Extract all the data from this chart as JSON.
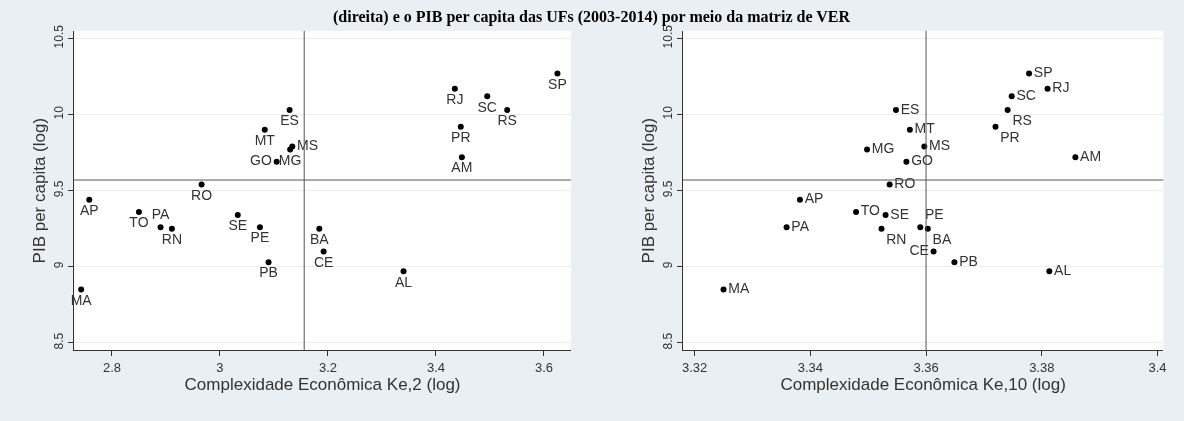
{
  "chart_data": [
    {
      "type": "scatter",
      "title": "(direita) e o PIB per capita das UFs (2003-2014) por meio da matriz de VER",
      "xlabel": "Complexidade Econômica Ke,2 (log)",
      "ylabel": "PIB per capita (log)",
      "color": "#000000",
      "marker": "circle",
      "grid": "y",
      "x": [
        3.625,
        3.435,
        3.495,
        3.532,
        3.446,
        3.448,
        3.129,
        3.083,
        3.134,
        3.13,
        3.105,
        2.966,
        2.758,
        2.85,
        3.033,
        2.89,
        2.911,
        3.074,
        3.184,
        3.192,
        3.09,
        3.34,
        2.743
      ],
      "values": [
        10.27,
        10.17,
        10.12,
        10.03,
        9.92,
        9.72,
        10.03,
        9.9,
        9.79,
        9.77,
        9.69,
        9.54,
        9.44,
        9.36,
        9.34,
        9.26,
        9.25,
        9.26,
        9.25,
        9.1,
        9.03,
        8.97,
        8.85
      ],
      "value_labels": [
        "SP",
        "RJ",
        "SC",
        "RS",
        "PR",
        "AM",
        "ES",
        "MT",
        "MS",
        "MG",
        "GO",
        "RO",
        "AP",
        "TO",
        "SE",
        "PA",
        "RN",
        "PE",
        "BA",
        "CE",
        "PB",
        "AL",
        "MA"
      ],
      "xlim": [
        2.73,
        3.65
      ],
      "xticks": [
        2.8,
        3,
        3.2,
        3.4,
        3.6
      ],
      "ylim": [
        8.45,
        10.55
      ],
      "yticks": [
        8.5,
        9,
        9.5,
        10,
        10.5
      ],
      "ref_lines": [
        {
          "axis": "x",
          "value": 3.156,
          "color": "#555555"
        },
        {
          "axis": "y",
          "value": 9.57,
          "color": "#555555"
        }
      ]
    },
    {
      "type": "scatter",
      "xlabel": "Complexidade Econômica Ke,10 (log)",
      "ylabel": "PIB per capita (log)",
      "color": "#000000",
      "marker": "circle",
      "grid": "y",
      "x": [
        3.3778,
        3.381,
        3.3748,
        3.3741,
        3.372,
        3.3858,
        3.3548,
        3.3572,
        3.3597,
        3.3498,
        3.3566,
        3.3537,
        3.3382,
        3.3479,
        3.353,
        3.3359,
        3.3523,
        3.359,
        3.3603,
        3.3613,
        3.3649,
        3.3813,
        3.325
      ],
      "values": [
        10.27,
        10.17,
        10.12,
        10.03,
        9.92,
        9.72,
        10.03,
        9.9,
        9.79,
        9.77,
        9.69,
        9.54,
        9.44,
        9.36,
        9.34,
        9.26,
        9.25,
        9.26,
        9.25,
        9.1,
        9.03,
        8.97,
        8.85
      ],
      "value_labels": [
        "SP",
        "RJ",
        "SC",
        "RS",
        "PR",
        "AM",
        "ES",
        "MT",
        "MS",
        "MG",
        "GO",
        "RO",
        "AP",
        "TO",
        "SE",
        "PA",
        "RN",
        "PE",
        "BA",
        "CE",
        "PB",
        "AL",
        "MA"
      ],
      "xlim": [
        3.318,
        3.401
      ],
      "xticks": [
        3.32,
        3.34,
        3.36,
        3.38,
        3.4
      ],
      "ylim": [
        8.45,
        10.55
      ],
      "yticks": [
        8.5,
        9,
        9.5,
        10,
        10.5
      ],
      "ref_lines": [
        {
          "axis": "x",
          "value": 3.36,
          "color": "#555555"
        },
        {
          "axis": "y",
          "value": 9.57,
          "color": "#555555"
        }
      ]
    }
  ]
}
